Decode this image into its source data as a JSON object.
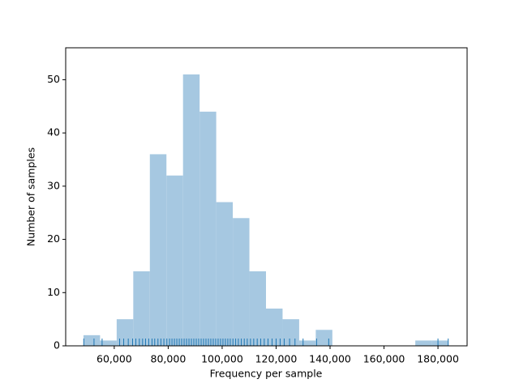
{
  "chart_data": {
    "type": "histogram",
    "x_label": "Frequency per sample",
    "y_label": "Number of samples",
    "bins": [
      48600,
      54750,
      60900,
      67050,
      73200,
      79350,
      85500,
      91650,
      97800,
      103950,
      110100,
      116250,
      122400,
      128550,
      134700,
      140850,
      147000,
      153150,
      159300,
      165450,
      171600,
      177750,
      183900
    ],
    "values": [
      2,
      1,
      5,
      14,
      36,
      32,
      51,
      44,
      27,
      24,
      14,
      7,
      5,
      1,
      3,
      0,
      0,
      0,
      0,
      0,
      1,
      1
    ],
    "color": "#a6c8e1",
    "rug_color": "#1f77b4",
    "rug": [
      48700,
      52500,
      55500,
      62000,
      63500,
      65200,
      66800,
      68000,
      69300,
      70500,
      71600,
      72800,
      74000,
      75000,
      76200,
      77300,
      78400,
      79500,
      80500,
      81400,
      82300,
      83200,
      84100,
      85000,
      85900,
      86800,
      87700,
      88600,
      89500,
      90400,
      91300,
      92200,
      93100,
      94000,
      94900,
      95800,
      96700,
      97600,
      98500,
      99400,
      100300,
      101200,
      102100,
      103000,
      104000,
      105000,
      106000,
      107100,
      108200,
      109300,
      110500,
      111700,
      113000,
      114300,
      115600,
      117000,
      118500,
      120000,
      121500,
      123000,
      125000,
      127000,
      130000,
      135000,
      139500,
      180000,
      183800
    ],
    "xlim": [
      42000,
      190800
    ],
    "ylim": [
      0,
      56
    ],
    "xticks": [
      {
        "value": 60000,
        "label": "60,000"
      },
      {
        "value": 80000,
        "label": "80,000"
      },
      {
        "value": 100000,
        "label": "100,000"
      },
      {
        "value": 120000,
        "label": "120,000"
      },
      {
        "value": 140000,
        "label": "140,000"
      },
      {
        "value": 160000,
        "label": "160,000"
      },
      {
        "value": 180000,
        "label": "180,000"
      }
    ],
    "yticks": [
      0,
      10,
      20,
      30,
      40,
      50
    ]
  }
}
